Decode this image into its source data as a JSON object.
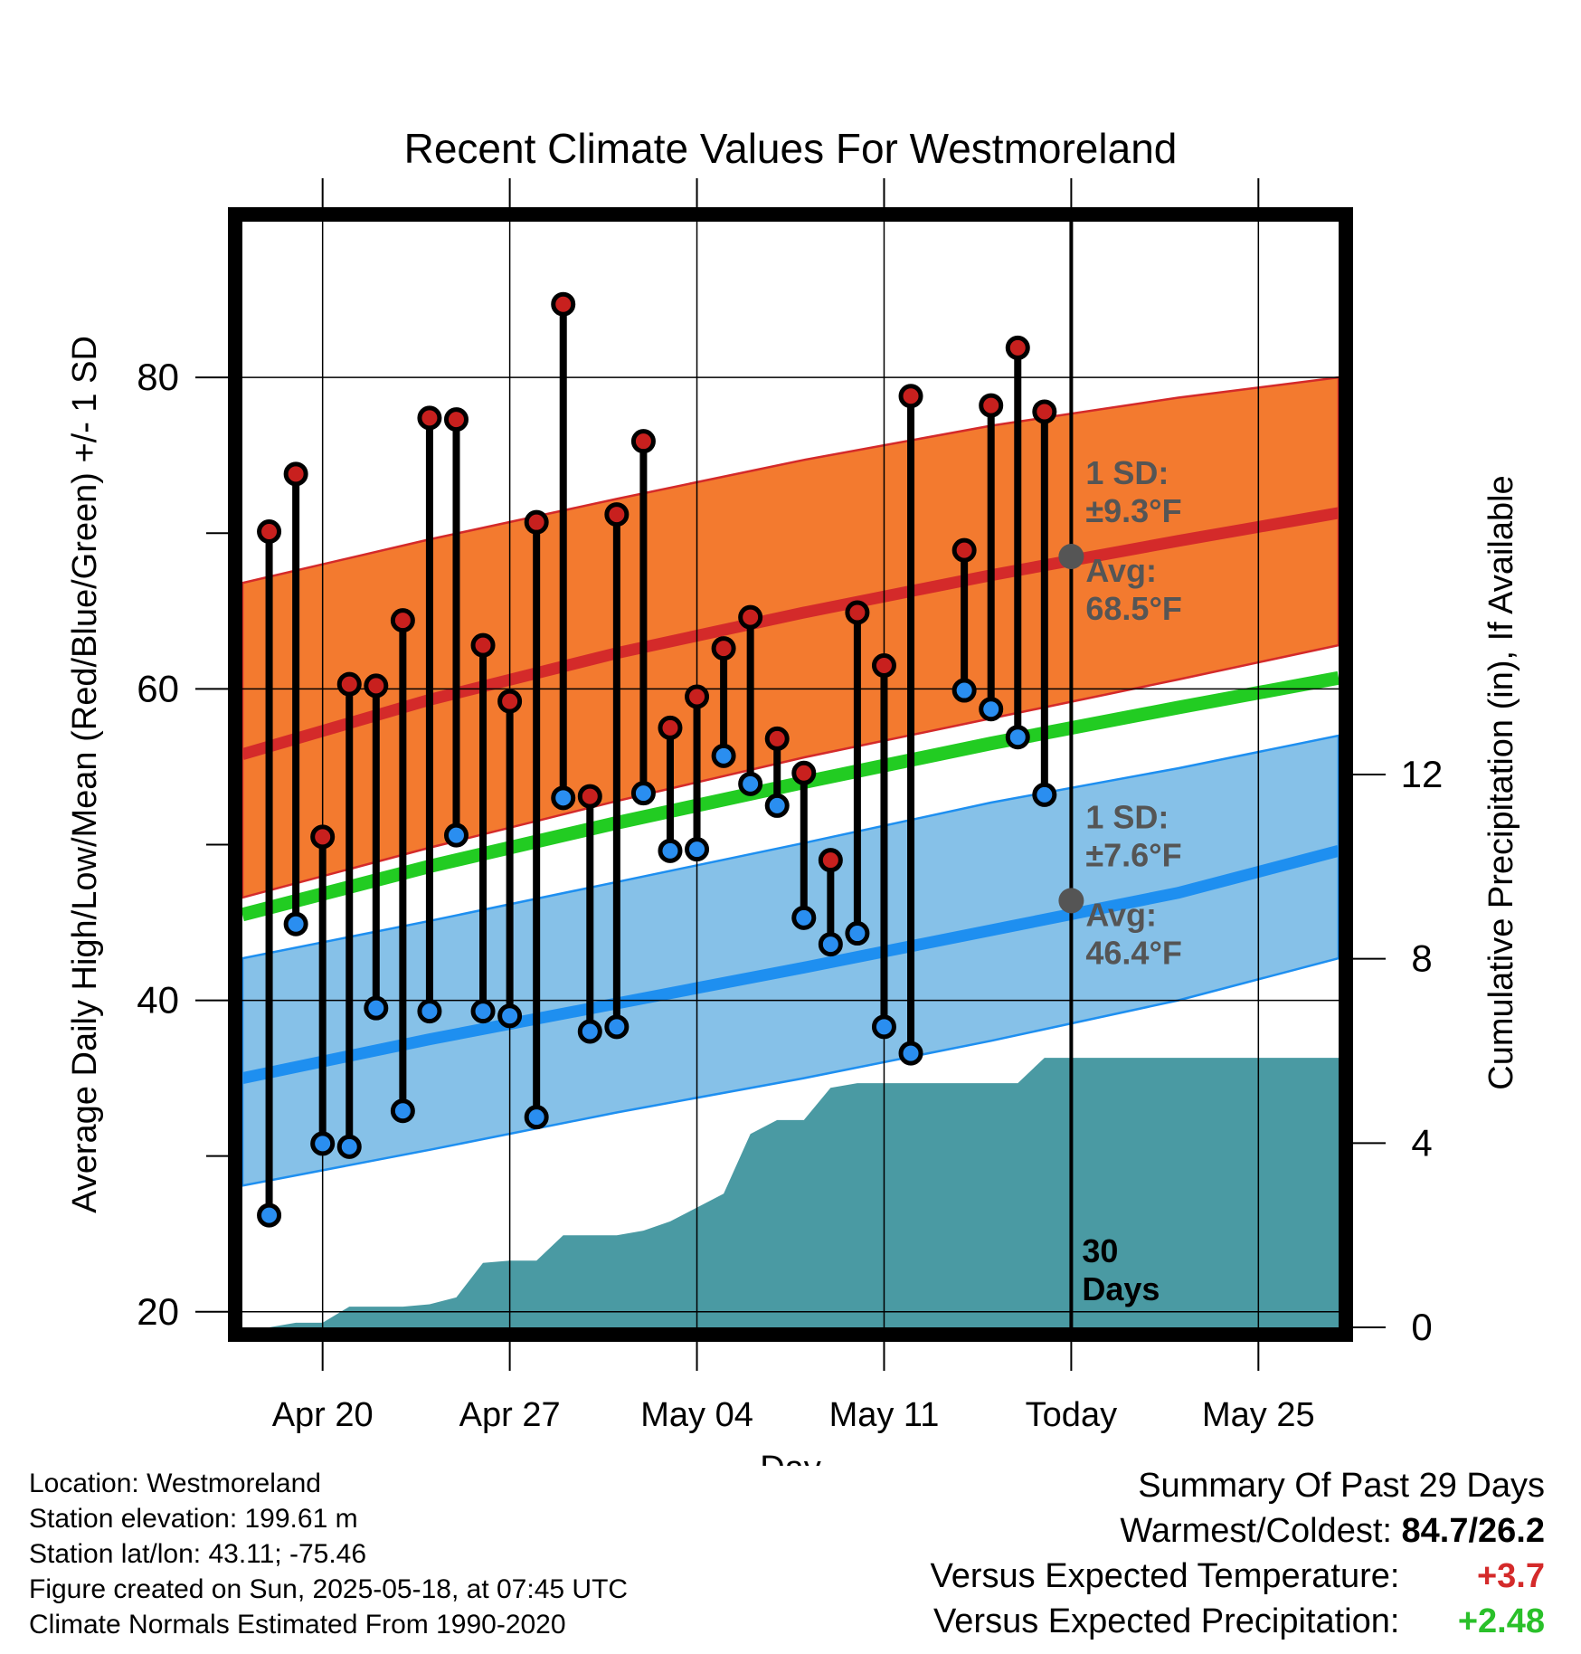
{
  "chart_data": {
    "type": "line",
    "title": "Recent Climate Values For Westmoreland",
    "xlabel": "Day",
    "ylabel": "Average Daily High/Low/Mean (Red/Blue/Green) +/- 1 SD",
    "y2label": "Cumulative Precipitation (in), If Available",
    "x_range": [
      "2025-04-17",
      "2025-05-28"
    ],
    "ylim": [
      19,
      90
    ],
    "y2lim": [
      0,
      24
    ],
    "y_ticks": [
      20,
      40,
      60,
      80
    ],
    "y2_ticks": [
      0,
      4,
      8,
      12
    ],
    "x_ticks": [
      {
        "date": "2025-04-20",
        "label": "Apr 20"
      },
      {
        "date": "2025-04-27",
        "label": "Apr 27"
      },
      {
        "date": "2025-05-04",
        "label": "May 04"
      },
      {
        "date": "2025-05-11",
        "label": "May 11"
      },
      {
        "date": "2025-05-18",
        "label": "Today"
      },
      {
        "date": "2025-05-25",
        "label": "May 25"
      }
    ],
    "grid": true,
    "today": "2025-05-18",
    "today_label_1": "30",
    "today_label_2": "Days",
    "normals": {
      "dates": [
        "2025-04-17",
        "2025-04-24",
        "2025-05-01",
        "2025-05-08",
        "2025-05-15",
        "2025-05-22",
        "2025-05-28"
      ],
      "high_mean": [
        55.8,
        59.3,
        62.3,
        64.9,
        67.3,
        69.5,
        71.3
      ],
      "high_upper": [
        66.8,
        69.6,
        72.2,
        74.7,
        76.9,
        78.7,
        80.0
      ],
      "high_lower": [
        46.6,
        49.8,
        52.8,
        55.6,
        58.1,
        60.6,
        62.8
      ],
      "low_mean": [
        35.0,
        37.5,
        39.8,
        42.1,
        44.5,
        46.9,
        49.6
      ],
      "low_upper": [
        42.7,
        45.1,
        47.6,
        50.1,
        52.7,
        54.9,
        57.0
      ],
      "low_lower": [
        28.1,
        30.4,
        32.8,
        35.0,
        37.4,
        40.0,
        42.7
      ],
      "mean": [
        45.5,
        48.6,
        51.4,
        54.0,
        56.5,
        58.8,
        60.7
      ]
    },
    "series": [
      {
        "name": "High",
        "dates": [
          "2025-04-18",
          "2025-04-19",
          "2025-04-20",
          "2025-04-21",
          "2025-04-22",
          "2025-04-23",
          "2025-04-24",
          "2025-04-25",
          "2025-04-26",
          "2025-04-27",
          "2025-04-28",
          "2025-04-29",
          "2025-04-30",
          "2025-05-01",
          "2025-05-02",
          "2025-05-03",
          "2025-05-04",
          "2025-05-05",
          "2025-05-06",
          "2025-05-07",
          "2025-05-08",
          "2025-05-09",
          "2025-05-10",
          "2025-05-11",
          "2025-05-12",
          "2025-05-14",
          "2025-05-15",
          "2025-05-16",
          "2025-05-17"
        ],
        "values": [
          70.1,
          73.8,
          50.5,
          60.3,
          60.2,
          64.4,
          77.4,
          77.3,
          62.8,
          59.2,
          70.7,
          84.7,
          53.1,
          71.2,
          75.9,
          57.5,
          59.5,
          62.6,
          64.6,
          56.8,
          54.6,
          49.0,
          64.9,
          61.5,
          78.8,
          68.9,
          78.2,
          81.9,
          77.8
        ]
      },
      {
        "name": "Low",
        "dates": [
          "2025-04-18",
          "2025-04-19",
          "2025-04-20",
          "2025-04-21",
          "2025-04-22",
          "2025-04-23",
          "2025-04-24",
          "2025-04-25",
          "2025-04-26",
          "2025-04-27",
          "2025-04-28",
          "2025-04-29",
          "2025-04-30",
          "2025-05-01",
          "2025-05-02",
          "2025-05-03",
          "2025-05-04",
          "2025-05-05",
          "2025-05-06",
          "2025-05-07",
          "2025-05-08",
          "2025-05-09",
          "2025-05-10",
          "2025-05-11",
          "2025-05-12",
          "2025-05-14",
          "2025-05-15",
          "2025-05-16",
          "2025-05-17"
        ],
        "values": [
          26.2,
          44.9,
          30.8,
          30.6,
          39.5,
          32.9,
          39.3,
          50.6,
          39.3,
          39.0,
          32.5,
          53.0,
          38.0,
          38.3,
          53.3,
          49.6,
          49.7,
          55.7,
          53.9,
          52.5,
          45.3,
          43.6,
          44.3,
          38.3,
          36.6,
          59.9,
          58.7,
          56.9,
          53.2
        ]
      },
      {
        "name": "Cumulative Precipitation",
        "dates": [
          "2025-04-17",
          "2025-04-18",
          "2025-04-19",
          "2025-04-20",
          "2025-04-21",
          "2025-04-22",
          "2025-04-23",
          "2025-04-24",
          "2025-04-25",
          "2025-04-26",
          "2025-04-27",
          "2025-04-28",
          "2025-04-29",
          "2025-04-30",
          "2025-05-01",
          "2025-05-02",
          "2025-05-03",
          "2025-05-04",
          "2025-05-05",
          "2025-05-06",
          "2025-05-07",
          "2025-05-08",
          "2025-05-09",
          "2025-05-10",
          "2025-05-11",
          "2025-05-12",
          "2025-05-13",
          "2025-05-14",
          "2025-05-15",
          "2025-05-16",
          "2025-05-17",
          "2025-05-18",
          "2025-05-28"
        ],
        "values": [
          0,
          0,
          0.1,
          0.1,
          0.45,
          0.45,
          0.45,
          0.5,
          0.65,
          1.4,
          1.45,
          1.45,
          2.0,
          2.0,
          2.0,
          2.1,
          2.3,
          2.6,
          2.9,
          4.2,
          4.5,
          4.5,
          5.2,
          5.3,
          5.3,
          5.3,
          5.3,
          5.3,
          5.3,
          5.3,
          5.85,
          5.85,
          5.85
        ]
      }
    ],
    "annotations": {
      "high_sd_label": "1 SD:",
      "high_sd_value": "±9.3°F",
      "high_avg_label": "Avg:",
      "high_avg_value": "68.5°F",
      "low_sd_label": "1 SD:",
      "low_sd_value": "±7.6°F",
      "low_avg_label": "Avg:",
      "low_avg_value": "46.4°F"
    },
    "colors": {
      "high_band": "#f37a2f",
      "high_mean": "#d42a2a",
      "low_band": "#86c1e8",
      "low_mean": "#1e8ff0",
      "mean": "#22cc22",
      "precip": "#4a9aa3",
      "high_dot": "#c8201e",
      "low_dot": "#2a8ef0",
      "annotation": "#555555"
    }
  },
  "station": {
    "location": "Location: Westmoreland",
    "elevation": "Station elevation: 199.61 m",
    "latlon": "Station lat/lon: 43.11; -75.46",
    "created": "Figure created on Sun, 2025-05-18, at 07:45 UTC",
    "normals": "Climate Normals Estimated From 1990-2020"
  },
  "summary": {
    "title": "Summary Of Past 29 Days",
    "warmest_label": "Warmest/Coldest:",
    "warmest_value": "84.7/26.2",
    "temp_label": "Versus Expected Temperature:",
    "temp_value": "+3.7",
    "precip_label": "Versus Expected Precipitation:",
    "precip_value": "+2.48"
  }
}
